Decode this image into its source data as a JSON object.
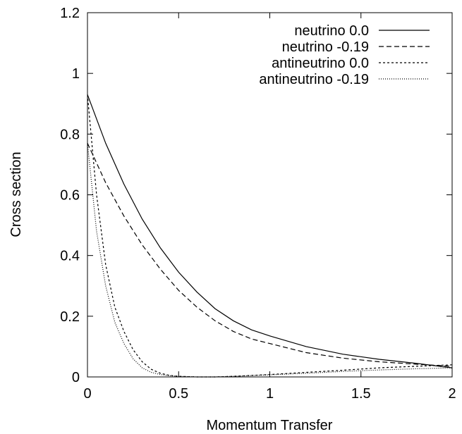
{
  "chart_data": {
    "type": "line",
    "xlabel": "Momentum Transfer",
    "ylabel": "Cross section",
    "xlim": [
      0,
      2
    ],
    "ylim": [
      0,
      1.2
    ],
    "xticks": [
      "0",
      "0.5",
      "1",
      "1.5",
      "2"
    ],
    "yticks": [
      "0",
      "0.2",
      "0.4",
      "0.6",
      "0.8",
      "1",
      "1.2"
    ],
    "grid": false,
    "legend_position": "top-right",
    "series": [
      {
        "name": "neutrino 0.0",
        "style": "solid",
        "x": [
          0,
          0.1,
          0.2,
          0.3,
          0.4,
          0.5,
          0.6,
          0.7,
          0.8,
          0.9,
          1.0,
          1.2,
          1.4,
          1.6,
          1.8,
          2.0
        ],
        "y": [
          0.93,
          0.77,
          0.635,
          0.52,
          0.425,
          0.345,
          0.28,
          0.225,
          0.185,
          0.155,
          0.135,
          0.1,
          0.075,
          0.058,
          0.045,
          0.03
        ]
      },
      {
        "name": "neutrino -0.19",
        "style": "dashed",
        "x": [
          0,
          0.1,
          0.2,
          0.3,
          0.4,
          0.5,
          0.6,
          0.7,
          0.8,
          0.9,
          1.0,
          1.2,
          1.4,
          1.6,
          1.8,
          2.0
        ],
        "y": [
          0.77,
          0.64,
          0.53,
          0.435,
          0.355,
          0.285,
          0.23,
          0.185,
          0.15,
          0.125,
          0.11,
          0.08,
          0.062,
          0.05,
          0.042,
          0.035
        ]
      },
      {
        "name": "antineutrino 0.0",
        "style": "short-dashed",
        "x": [
          0,
          0.05,
          0.1,
          0.15,
          0.2,
          0.25,
          0.3,
          0.35,
          0.4,
          0.45,
          0.5,
          0.6,
          0.7,
          0.8,
          1.0,
          1.2,
          1.4,
          1.6,
          1.8,
          2.0
        ],
        "y": [
          0.93,
          0.6,
          0.37,
          0.23,
          0.15,
          0.09,
          0.05,
          0.025,
          0.012,
          0.005,
          0.002,
          0.0,
          0.0,
          0.002,
          0.008,
          0.015,
          0.022,
          0.03,
          0.035,
          0.04
        ]
      },
      {
        "name": "antineutrino -0.19",
        "style": "dotted",
        "x": [
          0,
          0.05,
          0.1,
          0.15,
          0.2,
          0.25,
          0.3,
          0.35,
          0.4,
          0.45,
          0.5,
          0.6,
          0.7,
          0.8,
          1.0,
          1.2,
          1.4,
          1.6,
          1.8,
          2.0
        ],
        "y": [
          0.77,
          0.48,
          0.3,
          0.18,
          0.11,
          0.06,
          0.03,
          0.015,
          0.008,
          0.004,
          0.002,
          0.0,
          0.0,
          0.002,
          0.007,
          0.012,
          0.018,
          0.023,
          0.027,
          0.03
        ]
      }
    ]
  }
}
